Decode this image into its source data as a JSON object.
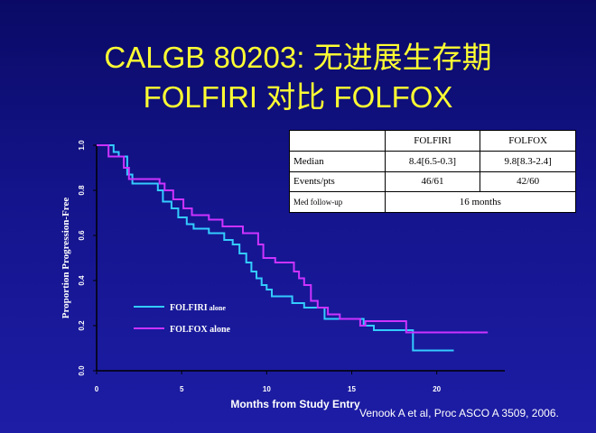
{
  "slide": {
    "title_line1": "CALGB 80203: 无进展生存期",
    "title_line2": "FOLFIRI 对比 FOLFOX",
    "source": "Venook A et al, Proc ASCO  A 3509, 2006."
  },
  "summary_table": {
    "headers": [
      "",
      "FOLFIRI",
      "FOLFOX"
    ],
    "rows": [
      {
        "label": "Median",
        "folfiri": "8.4[6.5-0.3]",
        "folfox": "9.8[8.3-2.4]"
      },
      {
        "label": "Events/pts",
        "folfiri": "46/61",
        "folfox": "42/60"
      }
    ],
    "followup_label": "Med follow-up",
    "followup_value": "16 months"
  },
  "chart_data": {
    "type": "line",
    "xlabel": "Months from Study Entry",
    "ylabel": "Proportion Progression-Free",
    "xlim": [
      0,
      24
    ],
    "ylim": [
      0,
      1
    ],
    "x_ticks": [
      "0",
      "5",
      "10",
      "15",
      "20"
    ],
    "x_tick_values": [
      0,
      5,
      10,
      15,
      20
    ],
    "y_ticks": [
      "0.0",
      "0.2",
      "0.4",
      "0.6",
      "0.8",
      "1.0"
    ],
    "y_tick_values": [
      0,
      0.2,
      0.4,
      0.6,
      0.8,
      1.0
    ],
    "legend_position": "bottom-left",
    "series": [
      {
        "name": "FOLFIRI",
        "name_suffix": "alone",
        "color": "#33ccff",
        "step_points": [
          [
            0,
            1.0
          ],
          [
            1.0,
            0.97
          ],
          [
            1.3,
            0.95
          ],
          [
            1.8,
            0.87
          ],
          [
            2.1,
            0.83
          ],
          [
            3.6,
            0.8
          ],
          [
            3.9,
            0.75
          ],
          [
            4.4,
            0.72
          ],
          [
            4.8,
            0.68
          ],
          [
            5.3,
            0.65
          ],
          [
            5.7,
            0.63
          ],
          [
            6.6,
            0.61
          ],
          [
            7.5,
            0.58
          ],
          [
            8.0,
            0.56
          ],
          [
            8.4,
            0.52
          ],
          [
            8.8,
            0.48
          ],
          [
            9.1,
            0.44
          ],
          [
            9.4,
            0.41
          ],
          [
            9.7,
            0.38
          ],
          [
            10.0,
            0.36
          ],
          [
            10.3,
            0.33
          ],
          [
            11.5,
            0.3
          ],
          [
            12.2,
            0.28
          ],
          [
            13.4,
            0.23
          ],
          [
            15.7,
            0.2
          ],
          [
            16.3,
            0.18
          ],
          [
            18.6,
            0.09
          ],
          [
            21.0,
            0.09
          ]
        ]
      },
      {
        "name": "FOLFOX",
        "name_suffix": "alone",
        "color": "#cc33ff",
        "step_points": [
          [
            0,
            1.0
          ],
          [
            0.7,
            0.95
          ],
          [
            1.6,
            0.9
          ],
          [
            1.9,
            0.85
          ],
          [
            3.7,
            0.83
          ],
          [
            4.0,
            0.8
          ],
          [
            4.5,
            0.76
          ],
          [
            5.1,
            0.72
          ],
          [
            5.6,
            0.69
          ],
          [
            6.6,
            0.67
          ],
          [
            7.4,
            0.64
          ],
          [
            8.6,
            0.61
          ],
          [
            9.5,
            0.56
          ],
          [
            9.8,
            0.5
          ],
          [
            10.5,
            0.48
          ],
          [
            11.6,
            0.44
          ],
          [
            11.9,
            0.41
          ],
          [
            12.2,
            0.38
          ],
          [
            12.6,
            0.31
          ],
          [
            13.0,
            0.28
          ],
          [
            13.6,
            0.25
          ],
          [
            14.3,
            0.23
          ],
          [
            15.5,
            0.2
          ],
          [
            15.8,
            0.22
          ],
          [
            17.9,
            0.22
          ],
          [
            18.2,
            0.17
          ],
          [
            23.0,
            0.17
          ]
        ]
      }
    ]
  }
}
